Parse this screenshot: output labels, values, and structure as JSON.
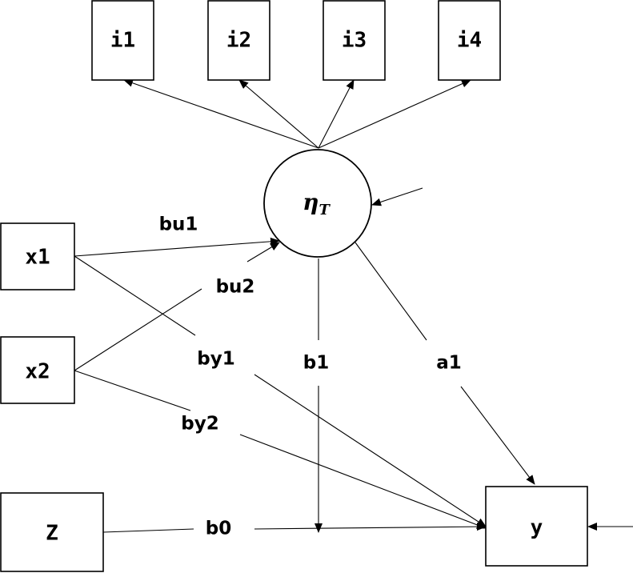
{
  "nodes": {
    "i1": "i1",
    "i2": "i2",
    "i3": "i3",
    "i4": "i4",
    "x1": "x1",
    "x2": "x2",
    "z": "Z",
    "y": "y",
    "eta": {
      "symbol": "η",
      "subscript": "T"
    }
  },
  "paths": {
    "bu1": "bu1",
    "bu2": "bu2",
    "by1": "by1",
    "by2": "by2",
    "b1": "b1",
    "a1": "a1",
    "b0": "b0"
  }
}
